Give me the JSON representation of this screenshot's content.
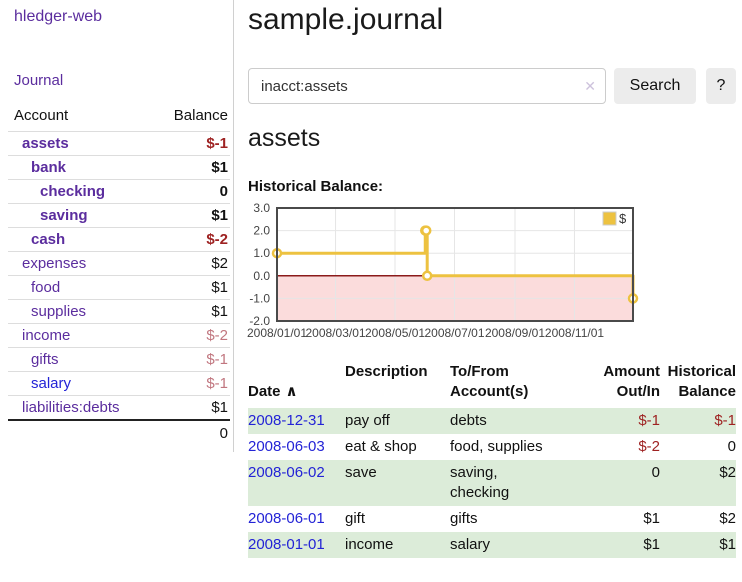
{
  "colors": {
    "accent_purple": "#5b2d9e",
    "link_blue": "#2323d6",
    "negative": "#9e2222",
    "negative_muted": "#c1767f",
    "row_green": "#dcecd9",
    "series_gold": "#edc240",
    "negative_region_fill": "#fbdcdc",
    "zero_line": "#8b1a1a",
    "grid_line": "#e6e6e6",
    "chart_border": "#4a4a4a",
    "button_bg": "#ececec",
    "divider": "#d0d0d0",
    "table_border": "#dddddd"
  },
  "sidebar": {
    "brand": "hledger-web",
    "nav": {
      "journal": "Journal"
    },
    "accounts_table": {
      "headers": {
        "account": "Account",
        "balance": "Balance"
      },
      "rows": [
        {
          "name": "assets",
          "balance": "$-1",
          "indent": 0,
          "bold": true,
          "neg": "strong"
        },
        {
          "name": "bank",
          "balance": "$1",
          "indent": 1,
          "bold": true,
          "neg": null
        },
        {
          "name": "checking",
          "balance": "0",
          "indent": 2,
          "bold": true,
          "neg": null
        },
        {
          "name": "saving",
          "balance": "$1",
          "indent": 2,
          "bold": true,
          "neg": null
        },
        {
          "name": "cash",
          "balance": "$-2",
          "indent": 1,
          "bold": true,
          "neg": "strong"
        },
        {
          "name": "expenses",
          "balance": "$2",
          "indent": 0,
          "bold": false,
          "neg": null
        },
        {
          "name": "food",
          "balance": "$1",
          "indent": 1,
          "bold": false,
          "neg": null
        },
        {
          "name": "supplies",
          "balance": "$1",
          "indent": 1,
          "bold": false,
          "neg": null
        },
        {
          "name": "income",
          "balance": "$-2",
          "indent": 0,
          "bold": false,
          "neg": "muted"
        },
        {
          "name": "gifts",
          "balance": "$-1",
          "indent": 1,
          "bold": false,
          "neg": "muted"
        },
        {
          "name": "salary",
          "balance": "$-1",
          "indent": 1,
          "bold": false,
          "neg": "muted",
          "blue": true
        },
        {
          "name": "liabilities:debts",
          "balance": "$1",
          "indent": 0,
          "bold": false,
          "neg": null
        }
      ],
      "total": "0"
    }
  },
  "main": {
    "title": "sample.journal",
    "search": {
      "value": "inacct:assets",
      "clear_icon": "✕",
      "button": "Search",
      "help_button": "?"
    },
    "account_heading": "assets",
    "chart_title": "Historical Balance:",
    "register": {
      "headers": {
        "date": "Date",
        "sort_icon": "∧",
        "description": "Description",
        "accounts": "To/From\nAccount(s)",
        "amount": "Amount\nOut/In",
        "balance": "Historical\nBalance"
      },
      "rows": [
        {
          "date": "2008-12-31",
          "description": "pay off",
          "accounts": "debts",
          "amount": "$-1",
          "amount_neg": true,
          "balance": "$-1",
          "balance_neg": true
        },
        {
          "date": "2008-06-03",
          "description": "eat & shop",
          "accounts": "food, supplies",
          "amount": "$-2",
          "amount_neg": true,
          "balance": "0",
          "balance_neg": false
        },
        {
          "date": "2008-06-02",
          "description": "save",
          "accounts": "saving,\nchecking",
          "amount": "0",
          "amount_neg": false,
          "balance": "$2",
          "balance_neg": false
        },
        {
          "date": "2008-06-01",
          "description": "gift",
          "accounts": "gifts",
          "amount": "$1",
          "amount_neg": false,
          "balance": "$2",
          "balance_neg": false
        },
        {
          "date": "2008-01-01",
          "description": "income",
          "accounts": "salary",
          "amount": "$1",
          "amount_neg": false,
          "balance": "$1",
          "balance_neg": false
        }
      ]
    }
  },
  "chart_data": {
    "type": "line",
    "title": "Historical Balance",
    "style": "step",
    "legend": [
      {
        "label": "$",
        "color": "#edc240",
        "position": "top-right"
      }
    ],
    "x_range": [
      "2008-01-01",
      "2008-12-31"
    ],
    "ylim": [
      -2.0,
      3.0
    ],
    "yticks": [
      3.0,
      2.0,
      1.0,
      0.0,
      -1.0,
      -2.0
    ],
    "xticks": [
      {
        "date": "2008-01-01",
        "label": "2008/01/01"
      },
      {
        "date": "2008-03-01",
        "label": "2008/03/01"
      },
      {
        "date": "2008-05-01",
        "label": "2008/05/01"
      },
      {
        "date": "2008-07-01",
        "label": "2008/07/01"
      },
      {
        "date": "2008-09-01",
        "label": "2008/09/01"
      },
      {
        "date": "2008-11-01",
        "label": "2008/11/01"
      }
    ],
    "grid": true,
    "series": [
      {
        "name": "$",
        "points": [
          {
            "date": "2008-01-01",
            "value": 1
          },
          {
            "date": "2008-06-01",
            "value": 2
          },
          {
            "date": "2008-06-02",
            "value": 2
          },
          {
            "date": "2008-06-03",
            "value": 0
          },
          {
            "date": "2008-12-31",
            "value": -1
          }
        ]
      }
    ],
    "annotations": {
      "zero_line": true,
      "negative_region_shaded": true
    }
  }
}
